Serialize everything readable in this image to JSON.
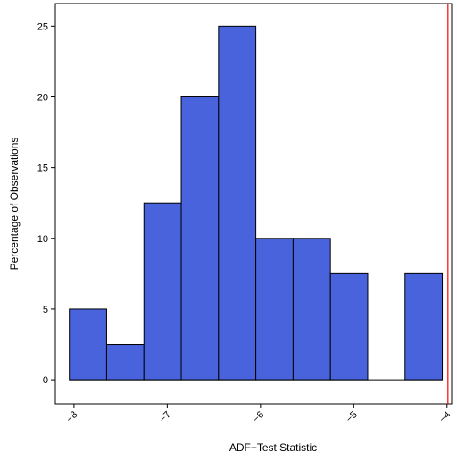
{
  "chart_data": {
    "type": "bar",
    "title": "",
    "xlabel": "ADF−Test Statistic",
    "ylabel": "Percentage of Observations",
    "xlim": [
      -8.2,
      -3.95
    ],
    "ylim": [
      -1.7,
      26.6
    ],
    "bin_edges": [
      -8.05,
      -7.65,
      -7.25,
      -6.85,
      -6.45,
      -6.05,
      -5.65,
      -5.25,
      -4.85,
      -4.45,
      -4.05
    ],
    "values": [
      5,
      2.5,
      12.5,
      20,
      25,
      10,
      10,
      7.5,
      0,
      7.5
    ],
    "xticks": [
      -8,
      -7,
      -6,
      -5,
      -4
    ],
    "xtick_labels": [
      "−8",
      "−7",
      "−6",
      "−5",
      "−4"
    ],
    "yticks": [
      0,
      5,
      10,
      15,
      20,
      25
    ],
    "ytick_labels": [
      "0",
      "5",
      "10",
      "15",
      "20",
      "25"
    ],
    "reference_line": {
      "x": -3.99,
      "color": "#ff0000"
    },
    "bar_color": "#4863dc",
    "grid": false,
    "legend": "none"
  }
}
